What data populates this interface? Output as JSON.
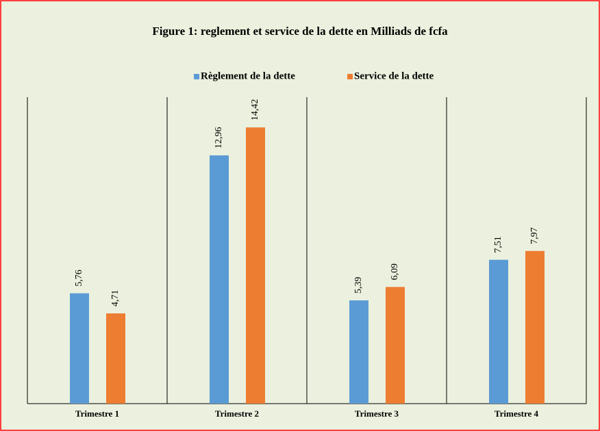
{
  "chart_data": {
    "type": "bar",
    "title": "Figure 1: reglement et service de la dette en Milliads de fcfa",
    "categories": [
      "Trimestre 1",
      "Trimestre 2",
      "Trimestre 3",
      "Trimestre 4"
    ],
    "series": [
      {
        "name": "Règlement de la dette",
        "color": "#5b9bd5",
        "values": [
          5.76,
          12.96,
          5.39,
          7.51
        ],
        "value_labels": [
          "5,76",
          "12,96",
          "5,39",
          "7,51"
        ]
      },
      {
        "name": "Service de la dette",
        "color": "#ed7d31",
        "values": [
          4.71,
          14.42,
          6.09,
          7.97
        ],
        "value_labels": [
          "4,71",
          "14,42",
          "6,09",
          "7,97"
        ]
      }
    ],
    "ylim": [
      0,
      16
    ],
    "legend": "top"
  }
}
